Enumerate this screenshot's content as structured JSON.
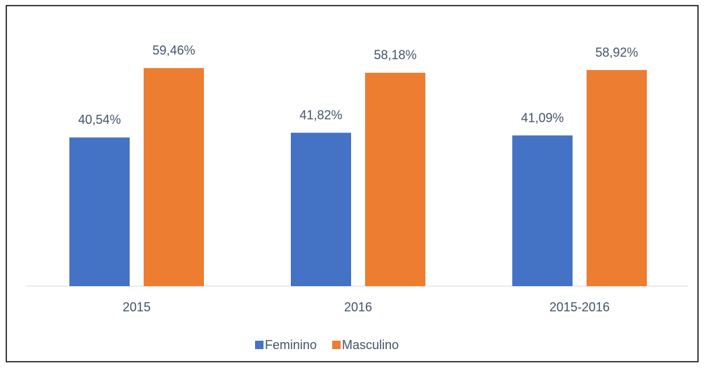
{
  "chart_data": {
    "type": "bar",
    "categories": [
      "2015",
      "2016",
      "2015-2016"
    ],
    "series": [
      {
        "name": "Feminino",
        "color": "#4472c4",
        "values": [
          40.54,
          41.82,
          41.09
        ],
        "value_labels": [
          "40,54%",
          "41,82%",
          "41,09%"
        ]
      },
      {
        "name": "Masculino",
        "color": "#ed7d31",
        "values": [
          59.46,
          58.18,
          58.92
        ],
        "value_labels": [
          "59,46%",
          "58,18%",
          "58,92%"
        ]
      }
    ],
    "ylim": [
      0,
      70
    ],
    "legend": "bottom"
  }
}
